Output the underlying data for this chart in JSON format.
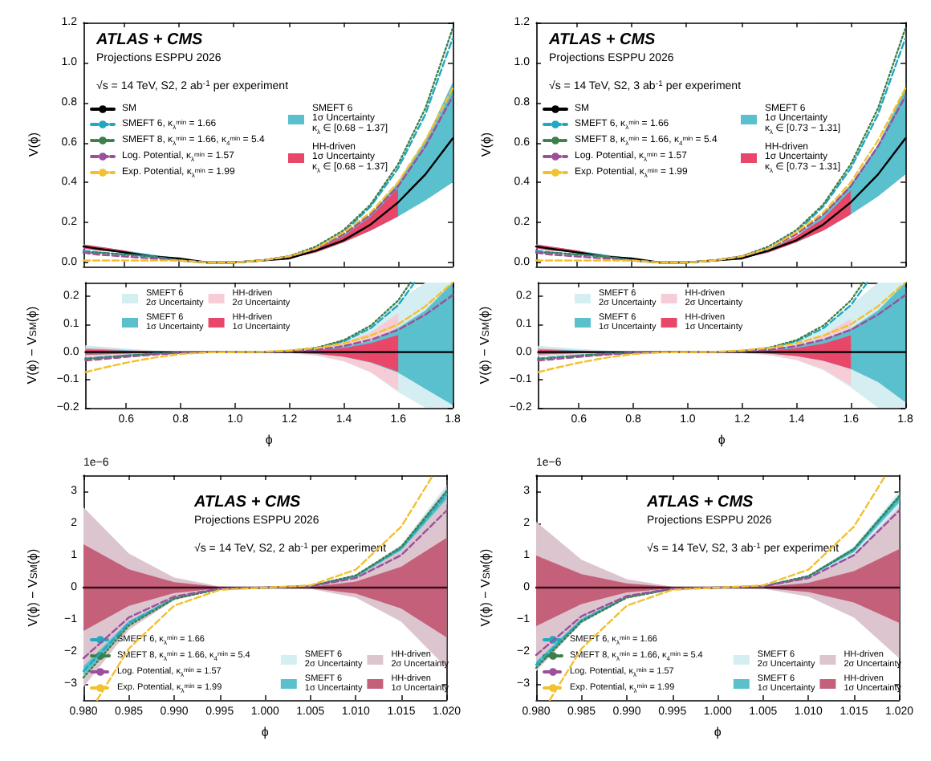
{
  "chart_data": [
    {
      "type": "line",
      "title": "ATLAS + CMS",
      "subtitle": "Projections ESPPU 2026",
      "annotations": [
        "√s = 14 TeV, S2, 2 ab$^{-1}$ per experiment"
      ],
      "ylabel": "V(ϕ)",
      "x": [
        0.45,
        0.5,
        0.6,
        0.7,
        0.8,
        0.9,
        1.0,
        1.1,
        1.2,
        1.3,
        1.4,
        1.5,
        1.6,
        1.7,
        1.8
      ],
      "xlim": [
        0.45,
        1.8
      ],
      "ylim": [
        -0.02,
        1.2
      ],
      "xticks": [
        {
          "value": 0.6,
          "label": null
        },
        {
          "value": 0.8,
          "label": null
        },
        {
          "value": 1,
          "label": null
        },
        {
          "value": 1.2,
          "label": null
        },
        {
          "value": 1.4,
          "label": null
        },
        {
          "value": 1.6,
          "label": null
        },
        {
          "value": 1.8,
          "label": null
        }
      ],
      "yticks": [
        {
          "value": 0,
          "label": "0.0"
        },
        {
          "value": 0.2,
          "label": "0.2"
        },
        {
          "value": 0.4,
          "label": "0.4"
        },
        {
          "value": 0.6,
          "label": "0.6"
        },
        {
          "value": 0.8,
          "label": "0.8"
        },
        {
          "value": 1,
          "label": "1.0"
        },
        {
          "value": 1.2,
          "label": "1.2"
        }
      ],
      "tick_labels": "y",
      "legend": "top left",
      "marker": "none",
      "series": [
        {
          "name": "SMEFT 6\n1σ Uncertainty\nκ$_{λ}$ ∈ [0.68 − 1.37]",
          "color": "#5bc0ce",
          "values": [
            null,
            null,
            null,
            null,
            null,
            null,
            null,
            null,
            null,
            null,
            null,
            null,
            null,
            null,
            null
          ],
          "lower": [
            0.07,
            0.06,
            0.05,
            0.03,
            0.02,
            0,
            0,
            0.01,
            0.02,
            0.05,
            0.1,
            0.16,
            0.23,
            0.31,
            0.4
          ],
          "upper": [
            0.09,
            0.08,
            0.06,
            0.04,
            0.02,
            0,
            0,
            0.01,
            0.03,
            0.07,
            0.14,
            0.24,
            0.4,
            0.61,
            0.9
          ]
        },
        {
          "name": "HH-driven\n1σ Uncertainty\nκ$_{λ}$ ∈ [0.68 − 1.37]",
          "color": "#e8476a",
          "values": [
            null,
            null,
            null,
            null,
            null,
            null,
            null,
            null,
            null,
            null,
            null,
            null,
            null,
            null,
            null
          ],
          "lower": [
            0.07,
            0.06,
            0.05,
            0.03,
            0.02,
            0,
            0,
            0.01,
            0.02,
            0.05,
            0.1,
            0.16,
            0.23,
            null,
            null
          ],
          "upper": [
            0.09,
            0.08,
            0.06,
            0.03,
            0.02,
            0,
            0,
            0.01,
            0.03,
            0.07,
            0.13,
            0.23,
            0.37,
            null,
            null
          ]
        },
        {
          "name": "SM",
          "color": "#000000",
          "line_style": "solid",
          "values": [
            0.08,
            0.07,
            0.05,
            0.03,
            0.02,
            0,
            0,
            0.01,
            0.02,
            0.06,
            0.11,
            0.19,
            0.3,
            0.44,
            0.62
          ]
        },
        {
          "name": "SMEFT 6, κ$_{λ}$$^{min}$ = 1.66",
          "color": "#1fa9c0",
          "line_style": "dashed",
          "values": [
            0.06,
            0.05,
            0.04,
            0.03,
            0.01,
            0,
            0,
            0.01,
            0.03,
            0.07,
            0.15,
            0.28,
            0.47,
            0.74,
            1.12
          ]
        },
        {
          "name": "SMEFT 8, κ$_{λ}$$^{min}$ = 1.66, κ$_{4}$$^{min}$ = 5.4",
          "color": "#3d7f4a",
          "line_style": "dotted",
          "values": [
            0.05,
            0.05,
            0.04,
            0.03,
            0.01,
            0,
            0,
            0.01,
            0.03,
            0.08,
            0.16,
            0.29,
            0.49,
            0.77,
            1.17
          ]
        },
        {
          "name": "Log. Potential, κ$_{λ}$$^{min}$ = 1.57",
          "color": "#9c4f9a",
          "line_style": "dashed",
          "values": [
            0.05,
            0.04,
            0.03,
            0.02,
            0.01,
            0,
            0,
            0.01,
            0.03,
            0.07,
            0.14,
            0.24,
            0.38,
            0.58,
            0.83
          ]
        },
        {
          "name": "Exp. Potential, κ$_{λ}$$^{min}$ = 1.99",
          "color": "#f2c12e",
          "line_style": "dashed",
          "values": [
            0.01,
            0.01,
            0.01,
            0.01,
            0.01,
            0,
            0,
            0.01,
            0.03,
            0.07,
            0.15,
            0.25,
            0.4,
            0.61,
            0.87
          ]
        }
      ]
    },
    {
      "type": "line",
      "xlabel": "ϕ",
      "ylabel": "V(ϕ) − V$_{SM}$(ϕ)",
      "x": [
        0.45,
        0.5,
        0.6,
        0.7,
        0.8,
        0.9,
        1.0,
        1.1,
        1.2,
        1.3,
        1.4,
        1.5,
        1.6,
        1.7,
        1.8
      ],
      "xlim": [
        0.45,
        1.8
      ],
      "ylim": [
        -0.2,
        0.25
      ],
      "xticks": [
        {
          "value": 0.6,
          "label": "0.6"
        },
        {
          "value": 0.8,
          "label": "0.8"
        },
        {
          "value": 1,
          "label": "1.0"
        },
        {
          "value": 1.2,
          "label": "1.2"
        },
        {
          "value": 1.4,
          "label": "1.4"
        },
        {
          "value": 1.6,
          "label": "1.6"
        },
        {
          "value": 1.8,
          "label": "1.8"
        }
      ],
      "yticks": [
        {
          "value": -0.2,
          "label": "−0.2"
        },
        {
          "value": -0.1,
          "label": "−0.1"
        },
        {
          "value": 0,
          "label": "0.0"
        },
        {
          "value": 0.1,
          "label": "0.1"
        },
        {
          "value": 0.2,
          "label": "0.2"
        }
      ],
      "legend": "top",
      "marker": "none",
      "series": [
        {
          "name": "SMEFT 6\n2σ Uncertainty",
          "color": "#d4eef2",
          "values": [
            null,
            null,
            null,
            null,
            null,
            null,
            null,
            null,
            null,
            null,
            null,
            null,
            null,
            null,
            null
          ],
          "lower": [
            -0.02,
            -0.016,
            -0.01,
            -0.005,
            -0.002,
            0,
            0,
            0,
            -0.003,
            -0.013,
            -0.033,
            -0.074,
            -0.144,
            -0.2,
            -0.2
          ],
          "upper": [
            0.025,
            0.021,
            0.013,
            0.007,
            0.002,
            0,
            0,
            0,
            0.004,
            0.017,
            0.043,
            0.096,
            0.186,
            0.25,
            0.25
          ]
        },
        {
          "name": "HH-driven\n2σ Uncertainty",
          "color": "#f6cdd6",
          "values": [
            null,
            null,
            null,
            null,
            null,
            null,
            null,
            null,
            null,
            null,
            null,
            null,
            null,
            null,
            null
          ],
          "lower": [
            -0.018,
            -0.016,
            -0.01,
            -0.005,
            -0.002,
            0,
            0,
            0,
            -0.003,
            -0.012,
            -0.033,
            -0.072,
            -0.14,
            null,
            null
          ],
          "upper": [
            0.018,
            0.016,
            0.01,
            0.005,
            0.002,
            0,
            0,
            0,
            0.003,
            0.012,
            0.033,
            0.072,
            0.14,
            null,
            null
          ]
        },
        {
          "name": "SMEFT 6\n1σ Uncertainty",
          "color": "#5bc0ce",
          "values": [
            null,
            null,
            null,
            null,
            null,
            null,
            null,
            null,
            null,
            null,
            null,
            null,
            null,
            null,
            null
          ],
          "lower": [
            -0.01,
            -0.008,
            -0.005,
            -0.003,
            -0.001,
            0,
            0,
            0,
            -0.002,
            -0.007,
            -0.017,
            -0.038,
            -0.074,
            -0.132,
            -0.19
          ],
          "upper": [
            0.013,
            0.011,
            0.007,
            0.003,
            0.001,
            0,
            0,
            0,
            0.002,
            0.008,
            0.021,
            0.04,
            0.088,
            0.15,
            0.25
          ]
        },
        {
          "name": "HH-driven\n1σ Uncertainty",
          "color": "#e8476a",
          "values": [
            null,
            null,
            null,
            null,
            null,
            null,
            null,
            null,
            null,
            null,
            null,
            null,
            null,
            null,
            null
          ],
          "lower": [
            -0.009,
            -0.008,
            -0.005,
            -0.002,
            -0.001,
            0,
            0,
            0,
            -0.002,
            -0.006,
            -0.016,
            -0.036,
            -0.07,
            null,
            null
          ],
          "upper": [
            0.009,
            0.008,
            0.005,
            0.002,
            0.001,
            0,
            0,
            0,
            0.002,
            0.006,
            0.015,
            0.032,
            0.062,
            null,
            null
          ]
        },
        {
          "color": "#000000",
          "line_style": "solid",
          "values": [
            0,
            0,
            0,
            0,
            0,
            0,
            0,
            0,
            0,
            0,
            0,
            0,
            0,
            0,
            0
          ]
        },
        {
          "color": "#1fa9c0",
          "line_style": "dashed",
          "x": [
            0.45,
            0.5,
            0.6,
            0.7,
            0.8,
            0.9,
            1.0,
            1.1,
            1.2,
            1.3,
            1.4,
            1.5,
            1.6,
            1.66
          ],
          "values": [
            -0.023,
            -0.019,
            -0.012,
            -0.006,
            -0.002,
            0,
            0,
            0,
            0.004,
            0.015,
            0.039,
            0.087,
            0.169,
            0.25
          ]
        },
        {
          "color": "#3d7f4a",
          "line_style": "dotted",
          "x": [
            0.45,
            0.5,
            0.6,
            0.7,
            0.8,
            0.9,
            1.0,
            1.1,
            1.2,
            1.3,
            1.4,
            1.5,
            1.6,
            1.645
          ],
          "values": [
            -0.025,
            -0.021,
            -0.013,
            -0.007,
            -0.002,
            0,
            0,
            0,
            0.004,
            0.016,
            0.043,
            0.096,
            0.186,
            0.25
          ]
        },
        {
          "color": "#9c4f9a",
          "line_style": "dashed",
          "values": [
            -0.03,
            -0.026,
            -0.017,
            -0.009,
            -0.003,
            0,
            0,
            0,
            0.003,
            0.008,
            0.022,
            0.045,
            0.08,
            0.135,
            0.205
          ]
        },
        {
          "color": "#f2c12e",
          "line_style": "dashed",
          "values": [
            -0.072,
            -0.06,
            -0.038,
            -0.02,
            -0.007,
            -0.001,
            0,
            0.001,
            0.006,
            0.015,
            0.032,
            0.06,
            0.1,
            0.165,
            0.25
          ]
        }
      ]
    },
    {
      "type": "line",
      "title": "ATLAS + CMS",
      "subtitle": "Projections ESPPU 2026",
      "annotations": [
        "√s = 14 TeV, S2, 3 ab$^{-1}$ per experiment"
      ],
      "ylabel": "V(ϕ)",
      "x": [
        0.45,
        0.5,
        0.6,
        0.7,
        0.8,
        0.9,
        1.0,
        1.1,
        1.2,
        1.3,
        1.4,
        1.5,
        1.6,
        1.7,
        1.8
      ],
      "xlim": [
        0.45,
        1.8
      ],
      "ylim": [
        -0.02,
        1.2
      ],
      "xticks": [
        {
          "value": 0.6,
          "label": null
        },
        {
          "value": 0.8,
          "label": null
        },
        {
          "value": 1,
          "label": null
        },
        {
          "value": 1.2,
          "label": null
        },
        {
          "value": 1.4,
          "label": null
        },
        {
          "value": 1.6,
          "label": null
        },
        {
          "value": 1.8,
          "label": null
        }
      ],
      "yticks": [
        {
          "value": 0,
          "label": "0.0"
        },
        {
          "value": 0.2,
          "label": "0.2"
        },
        {
          "value": 0.4,
          "label": "0.4"
        },
        {
          "value": 0.6,
          "label": "0.6"
        },
        {
          "value": 0.8,
          "label": "0.8"
        },
        {
          "value": 1,
          "label": "1.0"
        },
        {
          "value": 1.2,
          "label": "1.2"
        }
      ],
      "tick_labels": "y",
      "legend": "top left",
      "marker": "none",
      "series": [
        {
          "name": "SMEFT 6\n1σ Uncertainty\nκ$_{λ}$ ∈ [0.73 − 1.31]",
          "color": "#5bc0ce",
          "values": [
            null,
            null,
            null,
            null,
            null,
            null,
            null,
            null,
            null,
            null,
            null,
            null,
            null,
            null,
            null
          ],
          "lower": [
            0.07,
            0.06,
            0.05,
            0.03,
            0.02,
            0,
            0,
            0.01,
            0.02,
            0.05,
            0.1,
            0.16,
            0.24,
            0.33,
            0.44
          ],
          "upper": [
            0.09,
            0.08,
            0.06,
            0.04,
            0.02,
            0,
            0,
            0.01,
            0.03,
            0.07,
            0.13,
            0.24,
            0.39,
            0.59,
            0.87
          ]
        },
        {
          "name": "HH-driven\n1σ Uncertainty\nκ$_{λ}$ ∈ [0.73 − 1.31]",
          "color": "#e8476a",
          "values": [
            null,
            null,
            null,
            null,
            null,
            null,
            null,
            null,
            null,
            null,
            null,
            null,
            null,
            null,
            null
          ],
          "lower": [
            0.07,
            0.06,
            0.05,
            0.03,
            0.02,
            0,
            0,
            0.01,
            0.02,
            0.05,
            0.1,
            0.16,
            0.24,
            null,
            null
          ],
          "upper": [
            0.09,
            0.08,
            0.06,
            0.03,
            0.02,
            0,
            0,
            0.01,
            0.03,
            0.06,
            0.13,
            0.22,
            0.36,
            null,
            null
          ]
        },
        {
          "name": "SM",
          "color": "#000000",
          "line_style": "solid",
          "values": [
            0.08,
            0.07,
            0.05,
            0.03,
            0.02,
            0,
            0,
            0.01,
            0.02,
            0.06,
            0.11,
            0.19,
            0.3,
            0.44,
            0.62
          ]
        },
        {
          "name": "SMEFT 6, κ$_{λ}$$^{min}$ = 1.66",
          "color": "#1fa9c0",
          "line_style": "dashed",
          "values": [
            0.06,
            0.05,
            0.04,
            0.03,
            0.01,
            0,
            0,
            0.01,
            0.03,
            0.07,
            0.15,
            0.28,
            0.47,
            0.74,
            1.12
          ]
        },
        {
          "name": "SMEFT 8, κ$_{λ}$$^{min}$ = 1.66, κ$_{4}$$^{min}$ = 5.4",
          "color": "#3d7f4a",
          "line_style": "dotted",
          "values": [
            0.05,
            0.05,
            0.04,
            0.03,
            0.01,
            0,
            0,
            0.01,
            0.03,
            0.08,
            0.16,
            0.29,
            0.49,
            0.77,
            1.17
          ]
        },
        {
          "name": "Log. Potential, κ$_{λ}$$^{min}$ = 1.57",
          "color": "#9c4f9a",
          "line_style": "dashed",
          "values": [
            0.05,
            0.04,
            0.03,
            0.02,
            0.01,
            0,
            0,
            0.01,
            0.03,
            0.07,
            0.14,
            0.24,
            0.38,
            0.58,
            0.83
          ]
        },
        {
          "name": "Exp. Potential, κ$_{λ}$$^{min}$ = 1.99",
          "color": "#f2c12e",
          "line_style": "dashed",
          "values": [
            0.01,
            0.01,
            0.01,
            0.01,
            0.01,
            0,
            0,
            0.01,
            0.03,
            0.07,
            0.15,
            0.25,
            0.4,
            0.61,
            0.87
          ]
        }
      ]
    },
    {
      "type": "line",
      "xlabel": "ϕ",
      "ylabel": "V(ϕ) − V$_{SM}$(ϕ)",
      "x": [
        0.45,
        0.5,
        0.6,
        0.7,
        0.8,
        0.9,
        1.0,
        1.1,
        1.2,
        1.3,
        1.4,
        1.5,
        1.6,
        1.7,
        1.8
      ],
      "xlim": [
        0.45,
        1.8
      ],
      "ylim": [
        -0.2,
        0.25
      ],
      "xticks": [
        {
          "value": 0.6,
          "label": "0.6"
        },
        {
          "value": 0.8,
          "label": "0.8"
        },
        {
          "value": 1,
          "label": "1.0"
        },
        {
          "value": 1.2,
          "label": "1.2"
        },
        {
          "value": 1.4,
          "label": "1.4"
        },
        {
          "value": 1.6,
          "label": "1.6"
        },
        {
          "value": 1.8,
          "label": "1.8"
        }
      ],
      "yticks": [
        {
          "value": -0.2,
          "label": "−0.2"
        },
        {
          "value": -0.1,
          "label": "−0.1"
        },
        {
          "value": 0,
          "label": "0.0"
        },
        {
          "value": 0.1,
          "label": "0.1"
        },
        {
          "value": 0.2,
          "label": "0.2"
        }
      ],
      "legend": "top",
      "marker": "none",
      "series": [
        {
          "name": "SMEFT 6\n2σ Uncertainty",
          "color": "#d4eef2",
          "values": [
            null,
            null,
            null,
            null,
            null,
            null,
            null,
            null,
            null,
            null,
            null,
            null,
            null,
            null,
            null
          ],
          "lower": [
            -0.017,
            -0.014,
            -0.009,
            -0.005,
            -0.002,
            0,
            0,
            0,
            -0.003,
            -0.011,
            -0.029,
            -0.065,
            -0.127,
            -0.2,
            -0.2
          ],
          "upper": [
            0.023,
            0.019,
            0.012,
            0.006,
            0.002,
            0,
            0,
            0,
            0.004,
            0.015,
            0.039,
            0.087,
            0.169,
            0.25,
            0.25
          ]
        },
        {
          "name": "HH-driven\n2σ Uncertainty",
          "color": "#f6cdd6",
          "values": [
            null,
            null,
            null,
            null,
            null,
            null,
            null,
            null,
            null,
            null,
            null,
            null,
            null,
            null,
            null
          ],
          "lower": [
            -0.016,
            -0.013,
            -0.008,
            -0.004,
            -0.002,
            0,
            0,
            0,
            -0.003,
            -0.01,
            -0.028,
            -0.062,
            -0.12,
            null,
            null
          ],
          "upper": [
            0.016,
            0.013,
            0.008,
            0.004,
            0.002,
            0,
            0,
            0,
            0.003,
            0.01,
            0.028,
            0.062,
            0.12,
            null,
            null
          ]
        },
        {
          "name": "SMEFT 6\n1σ Uncertainty",
          "color": "#5bc0ce",
          "values": [
            null,
            null,
            null,
            null,
            null,
            null,
            null,
            null,
            null,
            null,
            null,
            null,
            null,
            null,
            null
          ],
          "lower": [
            -0.008,
            -0.007,
            -0.004,
            -0.002,
            -0.001,
            0,
            0,
            0,
            -0.001,
            -0.005,
            -0.014,
            -0.031,
            -0.061,
            -0.108,
            -0.18
          ],
          "upper": [
            0.012,
            0.01,
            0.006,
            0.003,
            0.001,
            0,
            0,
            0,
            0.002,
            0.008,
            0.02,
            0.044,
            0.085,
            0.15,
            0.25
          ]
        },
        {
          "name": "HH-driven\n1σ Uncertainty",
          "color": "#e8476a",
          "values": [
            null,
            null,
            null,
            null,
            null,
            null,
            null,
            null,
            null,
            null,
            null,
            null,
            null,
            null,
            null
          ],
          "lower": [
            -0.008,
            -0.007,
            -0.004,
            -0.002,
            -0.001,
            0,
            0,
            0,
            -0.001,
            -0.005,
            -0.014,
            -0.031,
            -0.06,
            null,
            null
          ],
          "upper": [
            0.008,
            0.007,
            0.004,
            0.002,
            0.001,
            0,
            0,
            0,
            0.001,
            0.005,
            0.014,
            0.031,
            0.06,
            null,
            null
          ]
        },
        {
          "color": "#000000",
          "line_style": "solid",
          "values": [
            0,
            0,
            0,
            0,
            0,
            0,
            0,
            0,
            0,
            0,
            0,
            0,
            0,
            0,
            0
          ]
        },
        {
          "color": "#1fa9c0",
          "line_style": "dashed",
          "x": [
            0.45,
            0.5,
            0.6,
            0.7,
            0.8,
            0.9,
            1.0,
            1.1,
            1.2,
            1.3,
            1.4,
            1.5,
            1.6,
            1.66
          ],
          "values": [
            -0.023,
            -0.019,
            -0.012,
            -0.006,
            -0.002,
            0,
            0,
            0,
            0.004,
            0.015,
            0.039,
            0.087,
            0.169,
            0.25
          ]
        },
        {
          "color": "#3d7f4a",
          "line_style": "dotted",
          "x": [
            0.45,
            0.5,
            0.6,
            0.7,
            0.8,
            0.9,
            1.0,
            1.1,
            1.2,
            1.3,
            1.4,
            1.5,
            1.6,
            1.645
          ],
          "values": [
            -0.025,
            -0.021,
            -0.013,
            -0.007,
            -0.002,
            0,
            0,
            0,
            0.004,
            0.016,
            0.043,
            0.096,
            0.186,
            0.25
          ]
        },
        {
          "color": "#9c4f9a",
          "line_style": "dashed",
          "values": [
            -0.03,
            -0.026,
            -0.017,
            -0.009,
            -0.003,
            0,
            0,
            0,
            0.003,
            0.008,
            0.022,
            0.045,
            0.08,
            0.135,
            0.205
          ]
        },
        {
          "color": "#f2c12e",
          "line_style": "dashed",
          "values": [
            -0.072,
            -0.06,
            -0.038,
            -0.02,
            -0.007,
            -0.001,
            0,
            0.001,
            0.006,
            0.015,
            0.032,
            0.06,
            0.1,
            0.165,
            0.25
          ]
        }
      ]
    },
    {
      "type": "line",
      "title": "ATLAS + CMS",
      "subtitle": "Projections ESPPU 2026",
      "annotations": [
        "√s = 14 TeV, S2, 2 ab$^{-1}$ per experiment",
        "1e−6"
      ],
      "xlabel": "ϕ",
      "ylabel": "V(ϕ) − V$_{SM}$(ϕ)",
      "x": [
        0.98,
        0.985,
        0.99,
        0.995,
        1.0,
        1.005,
        1.01,
        1.015,
        1.02
      ],
      "xlim": [
        0.98,
        1.02
      ],
      "ylim": [
        -3.5,
        3.5
      ],
      "xticks": [
        {
          "value": 0.98,
          "label": "0.980"
        },
        {
          "value": 0.985,
          "label": "0.985"
        },
        {
          "value": 0.99,
          "label": "0.990"
        },
        {
          "value": 0.995,
          "label": "0.995"
        },
        {
          "value": 1,
          "label": "1.000"
        },
        {
          "value": 1.005,
          "label": "1.005"
        },
        {
          "value": 1.01,
          "label": "1.010"
        },
        {
          "value": 1.015,
          "label": "1.015"
        },
        {
          "value": 1.02,
          "label": "1.020"
        }
      ],
      "yticks": [
        {
          "value": -3,
          "label": "−3"
        },
        {
          "value": -2,
          "label": "−2"
        },
        {
          "value": -1,
          "label": "−1"
        },
        0,
        1,
        2,
        3
      ],
      "legend": "bottom",
      "marker": "none",
      "series": [
        {
          "name": "SMEFT 6\n2σ Uncertainty",
          "color": "#d4eef2",
          "values": [
            null,
            null,
            null,
            null,
            null,
            null,
            null,
            null,
            null
          ],
          "lower": [
            -2.9,
            -1.22,
            -0.37,
            -0.05,
            0,
            0.04,
            0.32,
            1.1,
            2.6
          ],
          "upper": [
            -2.3,
            -0.98,
            -0.29,
            -0.03,
            0,
            0.06,
            0.4,
            1.34,
            3.2
          ]
        },
        {
          "name": "HH-driven\n2σ Uncertainty",
          "color": "#dcc5ce",
          "values": [
            null,
            null,
            null,
            null,
            null,
            null,
            null,
            null,
            null
          ],
          "lower": [
            -3.1,
            -1.31,
            -0.39,
            -0.05,
            0,
            -0.04,
            -0.31,
            -1.06,
            -2.5
          ],
          "upper": [
            2.5,
            1.06,
            0.31,
            0.04,
            0,
            0.05,
            0.39,
            1.31,
            3.1
          ]
        },
        {
          "name": "SMEFT 6\n1σ Uncertainty",
          "color": "#5bc0ce",
          "values": [
            null,
            null,
            null,
            null,
            null,
            null,
            null,
            null,
            null
          ],
          "lower": [
            -2.75,
            -1.16,
            -0.35,
            -0.04,
            0,
            0.05,
            0.34,
            1.16,
            2.75
          ],
          "upper": [
            -2.45,
            -1.04,
            -0.31,
            -0.04,
            0,
            0.05,
            0.38,
            1.28,
            3.05
          ]
        },
        {
          "name": "HH-driven\n1σ Uncertainty",
          "color": "#c4607a",
          "values": [
            null,
            null,
            null,
            null,
            null,
            null,
            null,
            null,
            null
          ],
          "lower": [
            -1.35,
            -0.57,
            -0.17,
            -0.02,
            0,
            -0.02,
            -0.19,
            -0.65,
            -1.55
          ],
          "upper": [
            1.35,
            0.57,
            0.17,
            0.02,
            0,
            0.02,
            0.19,
            0.65,
            1.55
          ]
        },
        {
          "color": "#3a0d18",
          "line_style": "solid",
          "values": [
            0,
            0,
            0,
            0,
            0,
            0,
            0,
            0,
            0
          ]
        },
        {
          "name": "SMEFT 6, κ$_{λ}$$^{min}$ = 1.66",
          "color": "#1fa9c0",
          "line_style": "dashed",
          "values": [
            -2.6,
            -1.1,
            -0.33,
            -0.04,
            0,
            0.05,
            0.36,
            1.22,
            2.9
          ]
        },
        {
          "name": "SMEFT 8, κ$_{λ}$$^{min}$ = 1.66, κ$_{4}$$^{min}$ = 5.4",
          "color": "#3d7f4a",
          "line_style": "dotted",
          "values": [
            -2.8,
            -1.18,
            -0.35,
            -0.04,
            0,
            0.05,
            0.38,
            1.27,
            3.0
          ]
        },
        {
          "name": "Log. Potential, κ$_{λ}$$^{min}$ = 1.57",
          "color": "#9c4f9a",
          "line_style": "dashed",
          "values": [
            -2.2,
            -0.93,
            -0.28,
            -0.03,
            0,
            0.04,
            0.3,
            1.01,
            2.4
          ]
        },
        {
          "name": "Exp. Potential, κ$_{λ}$$^{min}$ = 1.99",
          "color": "#f2c12e",
          "line_style": "dashed",
          "x": [
            0.9815,
            0.985,
            0.99,
            0.995,
            1.0,
            1.005,
            1.01,
            1.015,
            1.0185
          ],
          "values": [
            -3.5,
            -1.9,
            -0.56,
            -0.07,
            0,
            0.07,
            0.56,
            1.9,
            3.5
          ]
        }
      ]
    },
    {
      "type": "line",
      "title": "ATLAS + CMS",
      "subtitle": "Projections ESPPU 2026",
      "annotations": [
        "√s = 14 TeV, S2, 3 ab$^{-1}$ per experiment",
        "1e−6"
      ],
      "xlabel": "ϕ",
      "ylabel": "V(ϕ) − V$_{SM}$(ϕ)",
      "x": [
        0.98,
        0.985,
        0.99,
        0.995,
        1.0,
        1.005,
        1.01,
        1.015,
        1.02
      ],
      "xlim": [
        0.98,
        1.02
      ],
      "ylim": [
        -3.5,
        3.5
      ],
      "xticks": [
        {
          "value": 0.98,
          "label": "0.980"
        },
        {
          "value": 0.985,
          "label": "0.985"
        },
        {
          "value": 0.99,
          "label": "0.990"
        },
        {
          "value": 0.995,
          "label": "0.995"
        },
        {
          "value": 1,
          "label": "1.000"
        },
        {
          "value": 1.005,
          "label": "1.005"
        },
        {
          "value": 1.01,
          "label": "1.010"
        },
        {
          "value": 1.015,
          "label": "1.015"
        },
        {
          "value": 1.02,
          "label": "1.020"
        }
      ],
      "yticks": [
        {
          "value": -3,
          "label": "−3"
        },
        {
          "value": -2,
          "label": "−2"
        },
        {
          "value": -1,
          "label": "−1"
        },
        0,
        1,
        2,
        3
      ],
      "legend": "bottom",
      "marker": "none",
      "series": [
        {
          "name": "SMEFT 6\n2σ Uncertainty",
          "color": "#d4eef2",
          "values": [
            null,
            null,
            null,
            null,
            null,
            null,
            null,
            null,
            null
          ],
          "lower": [
            -2.6,
            -1.1,
            -0.33,
            -0.04,
            0,
            0.03,
            0.3,
            1.0,
            2.5
          ],
          "upper": [
            -2.2,
            -0.93,
            -0.27,
            -0.03,
            0,
            0.05,
            0.38,
            1.28,
            3.0
          ]
        },
        {
          "name": "HH-driven\n2σ Uncertainty",
          "color": "#dcc5ce",
          "values": [
            null,
            null,
            null,
            null,
            null,
            null,
            null,
            null,
            null
          ],
          "lower": [
            -2.6,
            -1.1,
            -0.33,
            -0.04,
            0,
            -0.03,
            -0.28,
            -0.93,
            -2.2
          ],
          "upper": [
            2.05,
            0.87,
            0.26,
            0.03,
            0,
            0.04,
            0.31,
            1.05,
            2.5
          ]
        },
        {
          "name": "SMEFT 6\n1σ Uncertainty",
          "color": "#5bc0ce",
          "values": [
            null,
            null,
            null,
            null,
            null,
            null,
            null,
            null,
            null
          ],
          "lower": [
            -2.5,
            -1.05,
            -0.31,
            -0.04,
            0,
            0.04,
            0.33,
            1.1,
            2.65
          ],
          "upper": [
            -2.3,
            -0.97,
            -0.29,
            -0.03,
            0,
            0.05,
            0.37,
            1.25,
            2.9
          ]
        },
        {
          "name": "HH-driven\n1σ Uncertainty",
          "color": "#c4607a",
          "values": [
            null,
            null,
            null,
            null,
            null,
            null,
            null,
            null,
            null
          ],
          "lower": [
            -1.2,
            -0.51,
            -0.15,
            -0.02,
            0,
            -0.02,
            -0.14,
            -0.46,
            -1.1
          ],
          "upper": [
            1.0,
            0.42,
            0.13,
            0.02,
            0,
            0.02,
            0.15,
            0.51,
            1.2
          ]
        },
        {
          "color": "#3a0d18",
          "line_style": "solid",
          "values": [
            0,
            0,
            0,
            0,
            0,
            0,
            0,
            0,
            0
          ]
        },
        {
          "name": "SMEFT 6, κ$_{λ}$$^{min}$ = 1.66",
          "color": "#1fa9c0",
          "line_style": "dashed",
          "values": [
            -2.4,
            -1.01,
            -0.3,
            -0.04,
            0,
            0.04,
            0.35,
            1.18,
            2.8
          ]
        },
        {
          "name": "SMEFT 8, κ$_{λ}$$^{min}$ = 1.66, κ$_{4}$$^{min}$ = 5.4",
          "color": "#3d7f4a",
          "line_style": "dotted",
          "values": [
            -2.5,
            -1.06,
            -0.31,
            -0.04,
            0,
            0.04,
            0.36,
            1.2,
            2.85
          ]
        },
        {
          "name": "Log. Potential, κ$_{λ}$$^{min}$ = 1.57",
          "color": "#9c4f9a",
          "line_style": "dashed",
          "values": [
            -2.1,
            -0.89,
            -0.26,
            -0.03,
            0,
            0.04,
            0.3,
            1.01,
            2.4
          ]
        },
        {
          "name": "Exp. Potential, κ$_{λ}$$^{min}$ = 1.99",
          "color": "#f2c12e",
          "line_style": "dashed",
          "x": [
            0.9815,
            0.985,
            0.99,
            0.995,
            1.0,
            1.005,
            1.01,
            1.015,
            1.0185
          ],
          "values": [
            -3.5,
            -1.9,
            -0.56,
            -0.07,
            0,
            0.07,
            0.56,
            1.9,
            3.5
          ]
        }
      ]
    }
  ]
}
